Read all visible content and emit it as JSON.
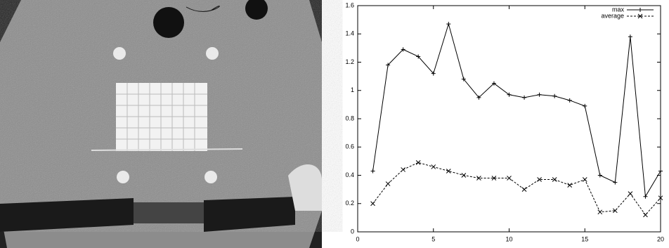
{
  "chart_data": {
    "type": "line",
    "x": [
      1,
      2,
      3,
      4,
      5,
      6,
      7,
      8,
      9,
      10,
      11,
      12,
      13,
      14,
      15,
      16,
      17,
      18,
      19,
      20
    ],
    "series": [
      {
        "name": "max",
        "color": "#000000",
        "dashed": false,
        "marker": "plus",
        "values": [
          0.43,
          1.18,
          1.29,
          1.24,
          1.12,
          1.47,
          1.08,
          0.95,
          1.05,
          0.97,
          0.95,
          0.97,
          0.96,
          0.93,
          0.89,
          0.4,
          0.35,
          1.38,
          0.25,
          0.43
        ]
      },
      {
        "name": "average",
        "color": "#000000",
        "dashed": true,
        "marker": "cross",
        "values": [
          0.2,
          0.34,
          0.44,
          0.49,
          0.46,
          0.43,
          0.4,
          0.38,
          0.38,
          0.38,
          0.3,
          0.37,
          0.37,
          0.33,
          0.37,
          0.14,
          0.15,
          0.27,
          0.12,
          0.24
        ]
      }
    ],
    "xlim": [
      0,
      20
    ],
    "xticks": [
      0,
      5,
      10,
      15,
      20
    ],
    "ylim": [
      0,
      1.6
    ],
    "yticks": [
      0,
      0.2,
      0.4,
      0.6,
      0.8,
      1,
      1.2,
      1.4,
      1.6
    ],
    "legend": "top-right"
  }
}
